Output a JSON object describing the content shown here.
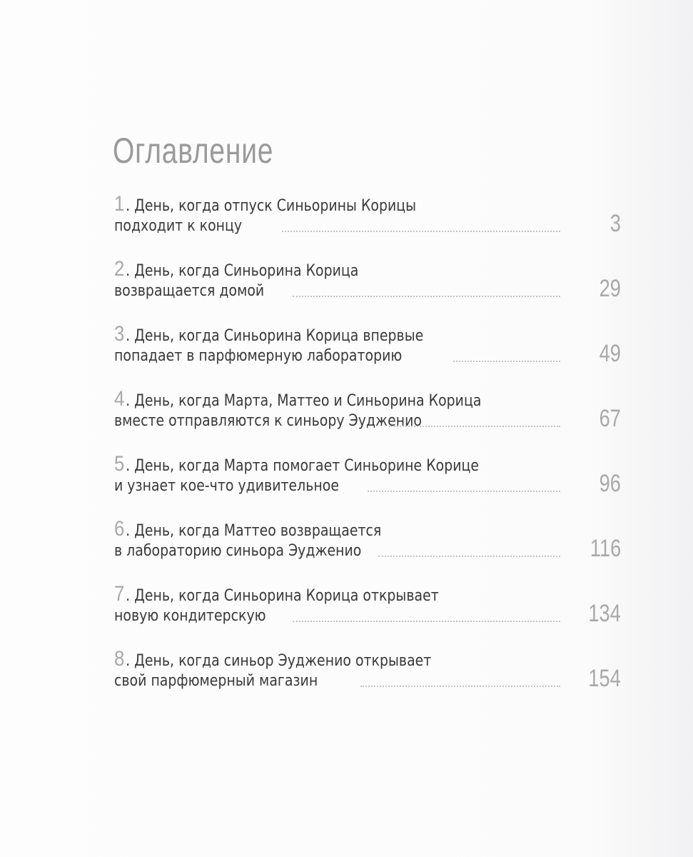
{
  "title": "Оглавление",
  "entries": [
    {
      "num": "1",
      "line1": ". День, когда отпуск Синьорины Корицы",
      "line2": "подходит к концу",
      "page": "3"
    },
    {
      "num": "2",
      "line1": ". День, когда Синьорина Корица",
      "line2": "возвращается домой",
      "page": "29"
    },
    {
      "num": "3",
      "line1": ". День, когда Синьорина Корица впервые",
      "line2": "попадает в парфюмерную лабораторию",
      "page": "49"
    },
    {
      "num": "4",
      "line1": ". День, когда Марта, Маттео и Синьорина Корица",
      "line2": "вместе отправляются к синьору Эудженио",
      "page": "67"
    },
    {
      "num": "5",
      "line1": ". День, когда Марта помогает Синьорине Корице",
      "line2": "и узнает кое-что удивительное",
      "page": "96"
    },
    {
      "num": "6",
      "line1": ". День, когда Маттео возвращается",
      "line2": "в лабораторию синьора Эудженио",
      "page": "116"
    },
    {
      "num": "7",
      "line1": ". День, когда Синьорина Корица открывает",
      "line2": "новую кондитерскую",
      "page": "134"
    },
    {
      "num": "8",
      "line1": ". День, когда синьор Эудженио открывает",
      "line2": "свой парфюмерный магазин",
      "page": "154"
    }
  ]
}
